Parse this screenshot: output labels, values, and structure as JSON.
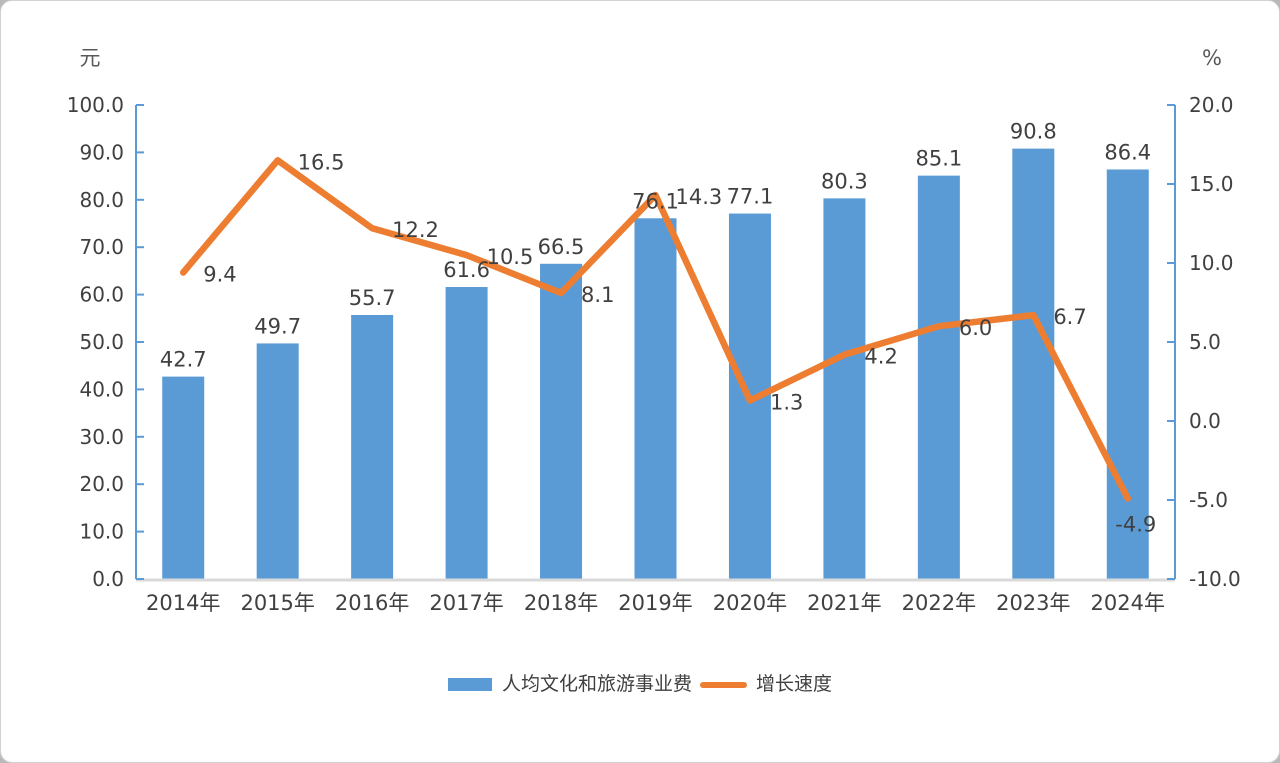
{
  "chart_data": {
    "type": "bar+line",
    "title": "",
    "categories": [
      "2014年",
      "2015年",
      "2016年",
      "2017年",
      "2018年",
      "2019年",
      "2020年",
      "2021年",
      "2022年",
      "2023年",
      "2024年"
    ],
    "series": [
      {
        "name": "人均文化和旅游事业费",
        "type": "bar",
        "axis": "left",
        "color": "#5B9BD5",
        "values": [
          42.7,
          49.7,
          55.7,
          61.6,
          66.5,
          76.1,
          77.1,
          80.3,
          85.1,
          90.8,
          86.4
        ]
      },
      {
        "name": "增长速度",
        "type": "line",
        "axis": "right",
        "color": "#ED7D31",
        "values": [
          9.4,
          16.5,
          12.2,
          10.5,
          8.1,
          14.3,
          1.3,
          4.2,
          6.0,
          6.7,
          -4.9
        ]
      }
    ],
    "axes": {
      "left": {
        "unit": "元",
        "min": 0,
        "max": 100,
        "step": 10,
        "ticks": [
          "0.0",
          "10.0",
          "20.0",
          "30.0",
          "40.0",
          "50.0",
          "60.0",
          "70.0",
          "80.0",
          "90.0",
          "100.0"
        ]
      },
      "right": {
        "unit": "%",
        "min": -10,
        "max": 20,
        "step": 5,
        "ticks": [
          "-10.0",
          "-5.0",
          "0.0",
          "5.0",
          "10.0",
          "15.0",
          "20.0"
        ]
      }
    },
    "legend": {
      "position": "bottom",
      "entries": [
        "人均文化和旅游事业费",
        "增长速度"
      ]
    },
    "grid": false,
    "data_labels": true,
    "colors": {
      "text": "#404040",
      "unit_text": "#595959",
      "axis_line": "#5B9BD5",
      "baseline": "#D9D9D9"
    }
  }
}
